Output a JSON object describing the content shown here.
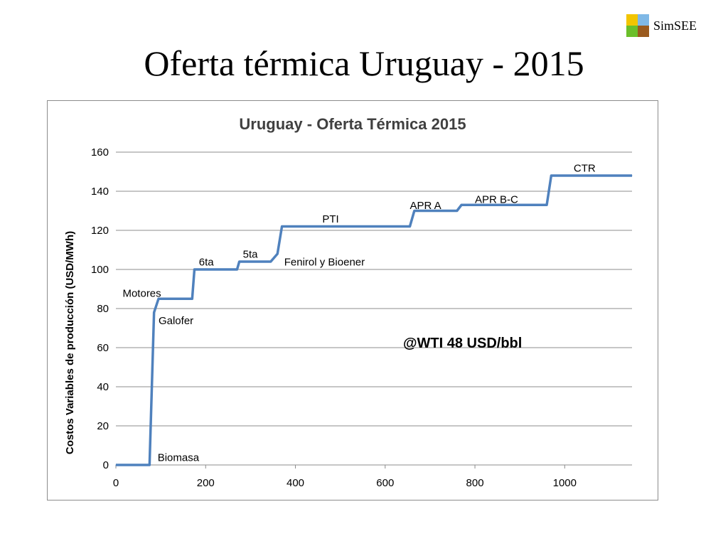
{
  "slide": {
    "title": "Oferta térmica Uruguay - 2015",
    "logo": {
      "text": "SimSEE",
      "colors": [
        "#f2c500",
        "#7fb8e6",
        "#6bbf2a",
        "#9a5a1e"
      ]
    }
  },
  "chart_data": {
    "type": "line",
    "title": "Uruguay - Oferta Térmica 2015",
    "xlabel": "",
    "ylabel": "Costos Variables de producción (USD/MWh)",
    "xlim": [
      0,
      1150
    ],
    "ylim": [
      0,
      160
    ],
    "xticks": [
      0,
      200,
      400,
      600,
      800,
      1000
    ],
    "yticks": [
      0,
      20,
      40,
      60,
      80,
      100,
      120,
      140,
      160
    ],
    "grid": "horizontal",
    "legend": "none",
    "line_color": "#4f81bd",
    "series": [
      {
        "x": [
          0,
          75,
          85,
          95,
          170,
          175,
          270,
          275,
          345,
          360,
          370,
          655,
          665,
          760,
          770,
          960,
          970,
          1150
        ],
        "y": [
          0,
          0,
          78,
          85,
          85,
          100,
          100,
          104,
          104,
          108,
          122,
          122,
          130,
          130,
          133,
          133,
          148,
          148
        ]
      }
    ],
    "annotations": [
      {
        "text": "Biomasa",
        "x": 93,
        "y": 2,
        "bold": false
      },
      {
        "text": "Galofer",
        "x": 95,
        "y": 72,
        "bold": false
      },
      {
        "text": "Motores",
        "x": 15,
        "y": 86,
        "bold": false
      },
      {
        "text": "6ta",
        "x": 185,
        "y": 102,
        "bold": false
      },
      {
        "text": "5ta",
        "x": 283,
        "y": 106,
        "bold": false
      },
      {
        "text": "Fenirol y Bioener",
        "x": 375,
        "y": 102,
        "bold": false
      },
      {
        "text": "PTI",
        "x": 460,
        "y": 124,
        "bold": false
      },
      {
        "text": "APR A",
        "x": 655,
        "y": 131,
        "bold": false
      },
      {
        "text": "APR B-C",
        "x": 800,
        "y": 134,
        "bold": false
      },
      {
        "text": "CTR",
        "x": 1020,
        "y": 150,
        "bold": false
      },
      {
        "text": "@WTI 48 USD/bbl",
        "x": 640,
        "y": 60,
        "bold": true
      }
    ]
  }
}
